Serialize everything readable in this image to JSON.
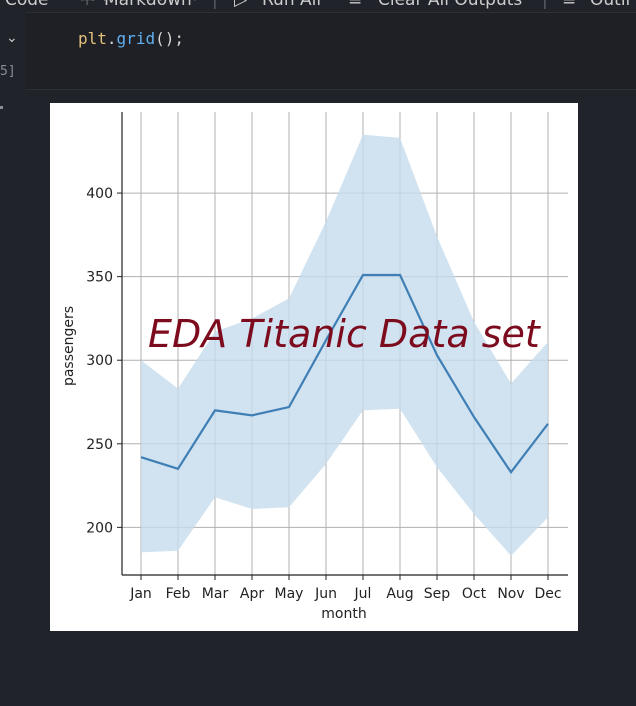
{
  "toolbar": {
    "items": [
      "Code",
      "Markdown",
      "Run All",
      "Clear All Outputs",
      "Outli"
    ]
  },
  "cell": {
    "code_var": "plt",
    "code_dot": ".",
    "code_fn": "grid",
    "code_tail": "();",
    "exec_count": "5]"
  },
  "colors": {
    "line": "#3f7fb5",
    "band": "#c6dcec",
    "watermark": "#7d0b1e"
  },
  "watermark": "EDA Titanic Data set",
  "chart_data": {
    "type": "line",
    "categories": [
      "Jan",
      "Feb",
      "Mar",
      "Apr",
      "May",
      "Jun",
      "Jul",
      "Aug",
      "Sep",
      "Oct",
      "Nov",
      "Dec"
    ],
    "series": [
      {
        "values": [
          242,
          235,
          270,
          267,
          272,
          312,
          351,
          351,
          303,
          266,
          233,
          262
        ],
        "ci_low": [
          185,
          186,
          218,
          211,
          212,
          238,
          270,
          271,
          236,
          208,
          183,
          206
        ],
        "ci_high": [
          300,
          283,
          317,
          325,
          337,
          383,
          435,
          433,
          374,
          323,
          286,
          311
        ]
      }
    ],
    "xlabel": "month",
    "ylabel": "passengers",
    "yticks": [
      200,
      250,
      300,
      350,
      400
    ],
    "ylim": [
      171.5,
      448.5
    ],
    "grid": true
  }
}
